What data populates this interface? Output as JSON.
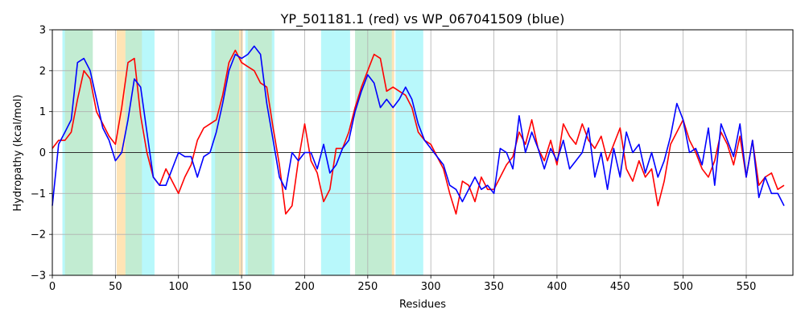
{
  "chart_data": {
    "type": "line",
    "title": "YP_501181.1 (red) vs WP_067041509 (blue)",
    "xlabel": "Residues",
    "ylabel": "Hydropathy (kcal/mol)",
    "xlim": [
      0,
      587
    ],
    "ylim": [
      -3,
      3
    ],
    "x_ticks": [
      0,
      50,
      100,
      150,
      200,
      250,
      300,
      350,
      400,
      450,
      500,
      550
    ],
    "y_ticks": [
      -3,
      -2,
      -1,
      0,
      1,
      2,
      3
    ],
    "grid": true,
    "zero_line": true,
    "region_colors": {
      "red_only": "#ffe4b5",
      "blue_only": "#b8f8fb",
      "overlap": "#c2ecd2"
    },
    "regions": {
      "red": [
        [
          10,
          32
        ],
        [
          51,
          71
        ],
        [
          129,
          151
        ],
        [
          155,
          174
        ],
        [
          240,
          271
        ]
      ],
      "blue": [
        [
          8,
          32
        ],
        [
          58,
          81
        ],
        [
          126,
          148
        ],
        [
          153,
          176
        ],
        [
          213,
          236
        ],
        [
          240,
          269
        ],
        [
          272,
          294
        ]
      ]
    },
    "series": [
      {
        "color": "#ff0000",
        "x": [
          0,
          5,
          10,
          15,
          20,
          25,
          30,
          35,
          40,
          45,
          50,
          55,
          60,
          65,
          70,
          75,
          80,
          85,
          90,
          95,
          100,
          105,
          110,
          115,
          120,
          125,
          130,
          135,
          140,
          145,
          150,
          155,
          160,
          165,
          170,
          175,
          180,
          185,
          190,
          195,
          200,
          205,
          210,
          215,
          220,
          225,
          230,
          235,
          240,
          245,
          250,
          255,
          260,
          265,
          270,
          275,
          280,
          285,
          290,
          295,
          300,
          305,
          310,
          315,
          320,
          325,
          330,
          335,
          340,
          345,
          350,
          355,
          360,
          365,
          370,
          375,
          380,
          385,
          390,
          395,
          400,
          405,
          410,
          415,
          420,
          425,
          430,
          435,
          440,
          445,
          450,
          455,
          460,
          465,
          470,
          475,
          480,
          485,
          490,
          495,
          500,
          505,
          510,
          515,
          520,
          525,
          530,
          535,
          540,
          545,
          550,
          555,
          560,
          565,
          570,
          575,
          580
        ],
        "y": [
          0.1,
          0.3,
          0.3,
          0.5,
          1.3,
          2.0,
          1.8,
          1.0,
          0.7,
          0.4,
          0.2,
          1.1,
          2.2,
          2.3,
          0.9,
          0.0,
          -0.6,
          -0.8,
          -0.4,
          -0.7,
          -1.0,
          -0.6,
          -0.3,
          0.3,
          0.6,
          0.7,
          0.8,
          1.4,
          2.2,
          2.5,
          2.2,
          2.1,
          2.0,
          1.7,
          1.6,
          0.6,
          -0.3,
          -1.5,
          -1.3,
          -0.2,
          0.7,
          -0.2,
          -0.5,
          -1.2,
          -0.9,
          0.1,
          0.1,
          0.5,
          1.1,
          1.6,
          2.0,
          2.4,
          2.3,
          1.5,
          1.6,
          1.5,
          1.4,
          1.1,
          0.5,
          0.3,
          0.2,
          -0.1,
          -0.4,
          -1.0,
          -1.5,
          -0.7,
          -0.8,
          -1.2,
          -0.6,
          -0.9,
          -0.9,
          -0.6,
          -0.3,
          -0.1,
          0.5,
          0.2,
          0.8,
          0.1,
          -0.2,
          0.3,
          -0.3,
          0.7,
          0.4,
          0.2,
          0.7,
          0.3,
          0.1,
          0.4,
          -0.2,
          0.2,
          0.6,
          -0.4,
          -0.7,
          -0.2,
          -0.6,
          -0.4,
          -1.3,
          -0.7,
          0.2,
          0.5,
          0.8,
          0.3,
          0.0,
          -0.4,
          -0.6,
          -0.2,
          0.5,
          0.2,
          -0.3,
          0.4,
          -0.6,
          0.3,
          -0.8,
          -0.6,
          -0.5,
          -0.9,
          -0.8
        ]
      },
      {
        "color": "#0000ff",
        "x": [
          0,
          5,
          10,
          15,
          20,
          25,
          30,
          35,
          40,
          45,
          50,
          55,
          60,
          65,
          70,
          75,
          80,
          85,
          90,
          95,
          100,
          105,
          110,
          115,
          120,
          125,
          130,
          135,
          140,
          145,
          150,
          155,
          160,
          165,
          170,
          175,
          180,
          185,
          190,
          195,
          200,
          205,
          210,
          215,
          220,
          225,
          230,
          235,
          240,
          245,
          250,
          255,
          260,
          265,
          270,
          275,
          280,
          285,
          290,
          295,
          300,
          305,
          310,
          315,
          320,
          325,
          330,
          335,
          340,
          345,
          350,
          355,
          360,
          365,
          370,
          375,
          380,
          385,
          390,
          395,
          400,
          405,
          410,
          415,
          420,
          425,
          430,
          435,
          440,
          445,
          450,
          455,
          460,
          465,
          470,
          475,
          480,
          485,
          490,
          495,
          500,
          505,
          510,
          515,
          520,
          525,
          530,
          535,
          540,
          545,
          550,
          555,
          560,
          565,
          570,
          575,
          580
        ],
        "y": [
          -1.3,
          0.2,
          0.5,
          0.8,
          2.2,
          2.3,
          2.0,
          1.3,
          0.6,
          0.3,
          -0.2,
          0.0,
          0.8,
          1.8,
          1.6,
          0.5,
          -0.6,
          -0.8,
          -0.8,
          -0.4,
          0.0,
          -0.1,
          -0.1,
          -0.6,
          -0.1,
          0.0,
          0.5,
          1.2,
          2.0,
          2.4,
          2.3,
          2.4,
          2.6,
          2.4,
          1.2,
          0.3,
          -0.6,
          -0.9,
          0.0,
          -0.2,
          0.0,
          0.0,
          -0.4,
          0.2,
          -0.5,
          -0.3,
          0.1,
          0.3,
          1.0,
          1.5,
          1.9,
          1.7,
          1.1,
          1.3,
          1.1,
          1.3,
          1.6,
          1.3,
          0.7,
          0.3,
          0.1,
          -0.1,
          -0.3,
          -0.8,
          -0.9,
          -1.2,
          -0.9,
          -0.6,
          -0.9,
          -0.8,
          -1.0,
          0.1,
          0.0,
          -0.4,
          0.9,
          0.0,
          0.5,
          0.1,
          -0.4,
          0.1,
          -0.2,
          0.3,
          -0.4,
          -0.2,
          0.0,
          0.6,
          -0.6,
          0.0,
          -0.9,
          0.1,
          -0.6,
          0.5,
          0.0,
          0.2,
          -0.5,
          0.0,
          -0.6,
          -0.2,
          0.4,
          1.2,
          0.8,
          0.0,
          0.1,
          -0.3,
          0.6,
          -0.8,
          0.7,
          0.3,
          -0.1,
          0.7,
          -0.6,
          0.3,
          -1.1,
          -0.6,
          -1.0,
          -1.0,
          -1.3
        ]
      }
    ]
  }
}
